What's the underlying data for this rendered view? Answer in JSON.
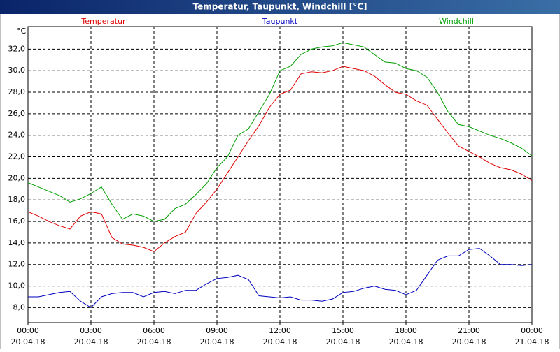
{
  "chart_data": {
    "type": "line",
    "title": "Temperatur, Taupunkt, Windchill [°C]",
    "y_unit": "°C",
    "x": [
      0,
      0.5,
      1,
      1.5,
      2,
      2.5,
      3,
      3.5,
      4,
      4.5,
      5,
      5.5,
      6,
      6.5,
      7,
      7.5,
      8,
      8.5,
      9,
      9.5,
      10,
      10.5,
      11,
      11.5,
      12,
      12.5,
      13,
      13.5,
      14,
      14.5,
      15,
      15.5,
      16,
      16.5,
      17,
      17.5,
      18,
      18.5,
      19,
      19.5,
      20,
      20.5,
      21,
      21.5,
      22,
      22.5,
      23,
      23.5,
      24
    ],
    "series": [
      {
        "name": "Temperatur",
        "color": "#e00000",
        "values": [
          16.9,
          16.5,
          16.0,
          15.6,
          15.3,
          16.5,
          16.9,
          16.7,
          14.5,
          13.9,
          13.8,
          13.6,
          13.2,
          14.0,
          14.6,
          15.0,
          16.75,
          17.8,
          19.0,
          20.5,
          22.0,
          23.5,
          24.9,
          26.6,
          27.8,
          28.2,
          29.7,
          29.9,
          29.8,
          30.0,
          30.4,
          30.2,
          30.0,
          29.5,
          28.7,
          28.0,
          27.8,
          27.2,
          26.8,
          25.5,
          24.2,
          23.0,
          22.5,
          22.0,
          21.4,
          21.0,
          20.8,
          20.4,
          19.8
        ]
      },
      {
        "name": "Taupunkt",
        "color": "#0000c0",
        "values": [
          9.0,
          9.0,
          9.2,
          9.4,
          9.5,
          8.6,
          8.0,
          9.0,
          9.3,
          9.4,
          9.4,
          9.0,
          9.4,
          9.5,
          9.3,
          9.6,
          9.6,
          10.2,
          10.7,
          10.8,
          11.0,
          10.6,
          9.1,
          9.0,
          8.9,
          9.0,
          8.7,
          8.7,
          8.6,
          8.8,
          9.4,
          9.5,
          9.8,
          10.0,
          9.7,
          9.6,
          9.2,
          9.6,
          11.0,
          12.4,
          12.8,
          12.8,
          13.4,
          13.5,
          12.8,
          12.0,
          12.0,
          11.9,
          12.0
        ]
      },
      {
        "name": "Windchill",
        "color": "#00a000",
        "values": [
          19.6,
          19.2,
          18.8,
          18.4,
          17.8,
          18.1,
          18.6,
          19.2,
          17.6,
          16.2,
          16.7,
          16.5,
          16.0,
          16.2,
          17.2,
          17.6,
          18.5,
          19.5,
          21.0,
          22.0,
          24.0,
          24.6,
          26.2,
          27.8,
          30.0,
          30.4,
          31.5,
          32.0,
          32.2,
          32.3,
          32.6,
          32.4,
          32.2,
          31.5,
          30.8,
          30.7,
          30.2,
          30.0,
          29.4,
          28.0,
          26.2,
          25.0,
          24.8,
          24.4,
          24.0,
          23.7,
          23.3,
          22.8,
          22.1
        ]
      }
    ],
    "xlim": [
      0,
      24
    ],
    "xticks": [
      {
        "value": 0,
        "label": "00:00"
      },
      {
        "value": 3,
        "label": "03:00"
      },
      {
        "value": 6,
        "label": "06:00"
      },
      {
        "value": 9,
        "label": "09:00"
      },
      {
        "value": 12,
        "label": "12:00"
      },
      {
        "value": 15,
        "label": "15:00"
      },
      {
        "value": 18,
        "label": "18:00"
      },
      {
        "value": 21,
        "label": "21:00"
      },
      {
        "value": 24,
        "label": "00:00"
      }
    ],
    "xtick_dates": [
      "20.04.18",
      "20.04.18",
      "20.04.18",
      "20.04.18",
      "20.04.18",
      "20.04.18",
      "20.04.18",
      "20.04.18",
      "21.04.18"
    ],
    "ylim": [
      6.6,
      34.1
    ],
    "yticks": [
      {
        "value": 8,
        "label": "8,0"
      },
      {
        "value": 10,
        "label": "10,0"
      },
      {
        "value": 12,
        "label": "12,0"
      },
      {
        "value": 14,
        "label": "14,0"
      },
      {
        "value": 16,
        "label": "16,0"
      },
      {
        "value": 18,
        "label": "18,0"
      },
      {
        "value": 20,
        "label": "20,0"
      },
      {
        "value": 22,
        "label": "22,0"
      },
      {
        "value": 24,
        "label": "24,0"
      },
      {
        "value": 26,
        "label": "26,0"
      },
      {
        "value": 28,
        "label": "28,0"
      },
      {
        "value": 30,
        "label": "30,0"
      },
      {
        "value": 32,
        "label": "32,0"
      }
    ],
    "grid": true
  }
}
